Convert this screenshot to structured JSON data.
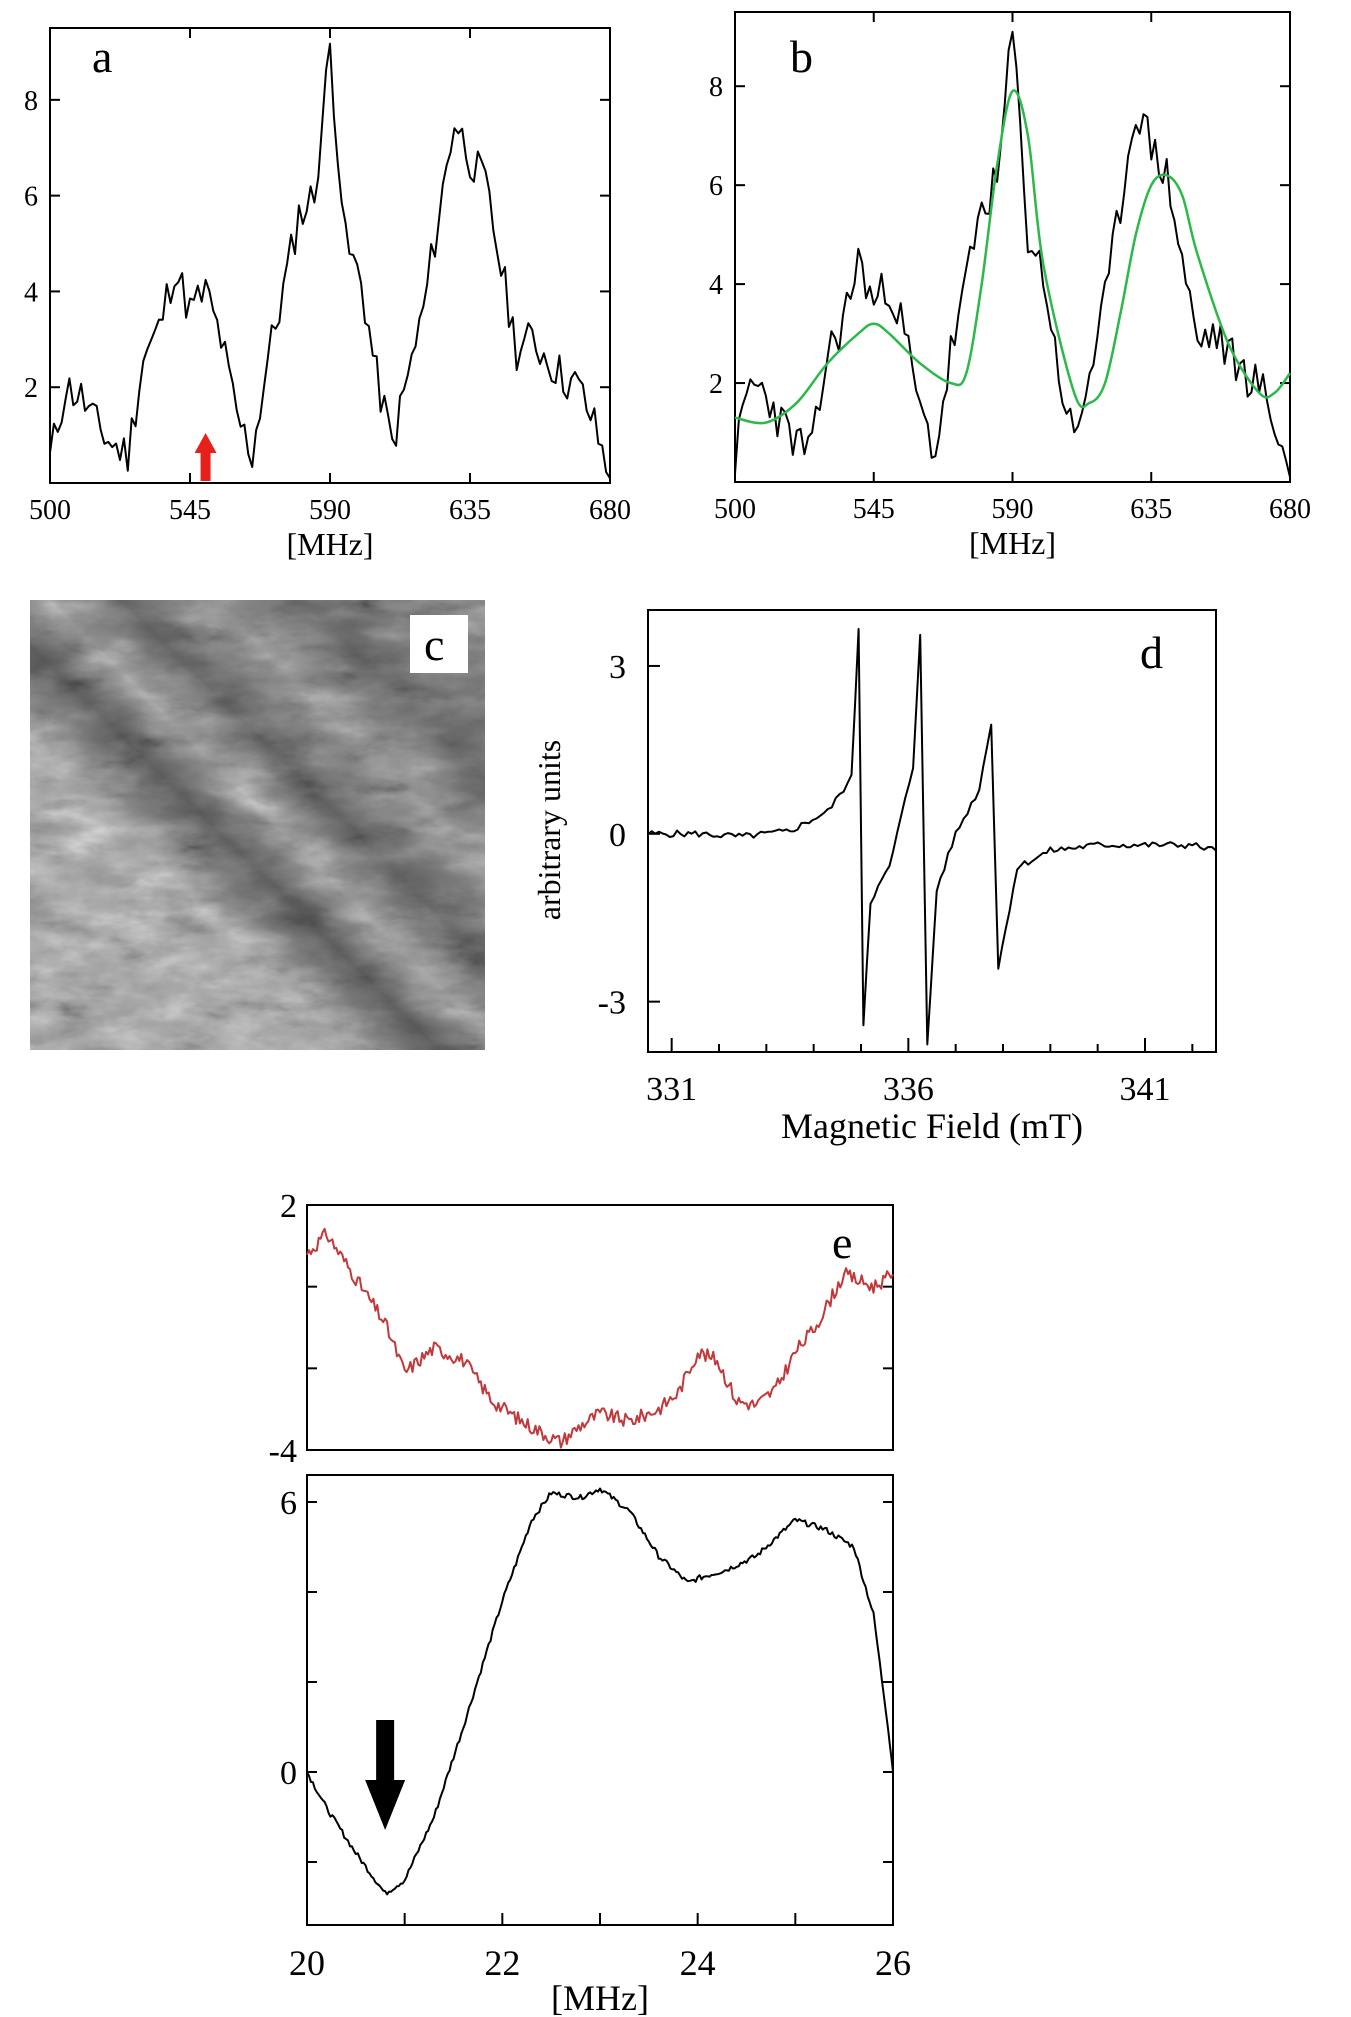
{
  "chart_data": [
    {
      "panel": "a",
      "type": "line",
      "xlabel": "[MHz]",
      "xlim": [
        500,
        680
      ],
      "ylim": [
        0,
        9.5
      ],
      "xticks": [
        "500",
        "545",
        "590",
        "635",
        "680"
      ],
      "yticks": [
        "2",
        "4",
        "6",
        "8"
      ],
      "series": [
        {
          "color": "#000000",
          "x": [
            500,
            505,
            510,
            515,
            520,
            525,
            530,
            535,
            540,
            545,
            550,
            555,
            560,
            565,
            570,
            575,
            580,
            585,
            590,
            595,
            600,
            605,
            610,
            615,
            620,
            625,
            630,
            635,
            640,
            645,
            650,
            655,
            660,
            665,
            670,
            675,
            680
          ],
          "y": [
            0.5,
            2.0,
            1.8,
            1.2,
            0.8,
            0.6,
            2.6,
            3.2,
            4.5,
            3.6,
            4.0,
            3.0,
            1.4,
            0.6,
            2.6,
            4.0,
            5.6,
            6.0,
            9.1,
            5.0,
            4.2,
            2.2,
            0.8,
            2.2,
            3.6,
            5.6,
            7.6,
            6.8,
            6.2,
            4.5,
            2.8,
            3.0,
            2.6,
            2.2,
            2.0,
            1.2,
            0.1
          ]
        }
      ],
      "annotations": [
        {
          "type": "arrow",
          "x": 550,
          "direction": "up",
          "color": "#e8201c"
        }
      ]
    },
    {
      "panel": "b",
      "type": "line",
      "xlabel": "[MHz]",
      "xlim": [
        500,
        680
      ],
      "ylim": [
        0,
        9.5
      ],
      "xticks": [
        "500",
        "545",
        "590",
        "635",
        "680"
      ],
      "yticks": [
        "2",
        "4",
        "6",
        "8"
      ],
      "series": [
        {
          "color": "#000000",
          "x": [
            500,
            505,
            510,
            515,
            520,
            525,
            530,
            535,
            540,
            545,
            550,
            555,
            560,
            565,
            570,
            575,
            580,
            585,
            590,
            595,
            600,
            605,
            610,
            615,
            620,
            625,
            630,
            635,
            640,
            645,
            650,
            655,
            660,
            665,
            670,
            675,
            680
          ],
          "y": [
            0.5,
            2.0,
            1.8,
            1.2,
            0.8,
            0.6,
            2.6,
            3.2,
            4.5,
            3.6,
            4.0,
            3.0,
            1.4,
            0.6,
            2.6,
            4.0,
            5.6,
            6.0,
            9.1,
            5.0,
            4.2,
            2.2,
            0.8,
            2.2,
            3.6,
            5.6,
            7.6,
            6.8,
            6.2,
            4.5,
            2.8,
            3.0,
            2.6,
            2.2,
            2.0,
            1.2,
            0.1
          ]
        },
        {
          "color": "#2db84a",
          "x": [
            500,
            510,
            520,
            530,
            540,
            545,
            550,
            560,
            570,
            575,
            580,
            585,
            590,
            595,
            600,
            610,
            615,
            620,
            625,
            630,
            635,
            640,
            645,
            650,
            660,
            670,
            675,
            680
          ],
          "y": [
            1.3,
            1.2,
            1.6,
            2.4,
            3.0,
            3.2,
            3.0,
            2.4,
            2.0,
            2.2,
            4.0,
            6.4,
            7.9,
            7.0,
            4.4,
            1.8,
            1.6,
            2.0,
            3.4,
            5.0,
            6.0,
            6.2,
            5.8,
            4.6,
            2.8,
            1.8,
            1.8,
            2.2
          ]
        }
      ]
    },
    {
      "panel": "c",
      "type": "heatmap",
      "description_visible": "grayscale surface image"
    },
    {
      "panel": "d",
      "type": "line",
      "xlabel": "Magnetic Field (mT)",
      "ylabel": "arbitrary  units",
      "xlim": [
        330.5,
        342.5
      ],
      "ylim": [
        -3.9,
        4.0
      ],
      "xticks": [
        "331",
        "336",
        "341"
      ],
      "yticks": [
        "3",
        "0",
        "-3"
      ],
      "series": [
        {
          "color": "#000000",
          "x": [
            330.5,
            331.5,
            332.5,
            333.5,
            334.3,
            334.8,
            334.95,
            335.05,
            335.2,
            335.6,
            336.1,
            336.25,
            336.4,
            336.6,
            337.0,
            337.5,
            337.75,
            337.9,
            338.3,
            339.0,
            340.0,
            341.0,
            342.0,
            342.5
          ],
          "y": [
            0.0,
            0.0,
            -0.05,
            0.05,
            0.4,
            1.0,
            3.7,
            -3.4,
            -1.2,
            -0.6,
            1.2,
            3.6,
            -3.8,
            -1.0,
            0.0,
            0.8,
            2.0,
            -2.4,
            -0.6,
            -0.3,
            -0.2,
            -0.2,
            -0.2,
            -0.3
          ]
        }
      ]
    },
    {
      "panel": "e",
      "type": "line",
      "xlabel": "[MHz]",
      "xlim": [
        20,
        26
      ],
      "xticks": [
        "20",
        "22",
        "24",
        "26"
      ],
      "subplots": [
        {
          "ylim": [
            -4,
            2
          ],
          "yticks": [
            "2",
            "-4"
          ],
          "tick_color": "#c0393b",
          "series": [
            {
              "color": "#c0393b",
              "x": [
                20.0,
                20.2,
                20.5,
                20.8,
                21.0,
                21.3,
                21.6,
                21.9,
                22.2,
                22.5,
                22.6,
                22.8,
                23.0,
                23.3,
                23.6,
                23.8,
                24.0,
                24.2,
                24.4,
                24.6,
                24.8,
                25.0,
                25.2,
                25.5,
                25.8,
                26.0
              ],
              "y": [
                0.8,
                1.3,
                0.2,
                -0.9,
                -2.1,
                -1.5,
                -1.8,
                -2.8,
                -3.3,
                -3.7,
                -3.8,
                -3.4,
                -3.1,
                -3.3,
                -3.0,
                -2.6,
                -1.6,
                -1.8,
                -2.8,
                -2.9,
                -2.5,
                -1.6,
                -1.0,
                0.3,
                0.0,
                0.3
              ]
            }
          ]
        },
        {
          "ylim": [
            -3.4,
            6.6
          ],
          "yticks": [
            "6",
            "0"
          ],
          "tick_color": "#000000",
          "series": [
            {
              "color": "#000000",
              "x": [
                20.0,
                20.2,
                20.5,
                20.8,
                21.0,
                21.3,
                21.6,
                22.0,
                22.3,
                22.5,
                22.8,
                23.0,
                23.3,
                23.6,
                23.9,
                24.0,
                24.3,
                24.6,
                25.0,
                25.3,
                25.6,
                25.8,
                25.95,
                26.0
              ],
              "y": [
                0.0,
                -0.8,
                -1.8,
                -2.7,
                -2.4,
                -1.0,
                1.0,
                3.8,
                5.6,
                6.2,
                6.1,
                6.3,
                5.8,
                4.8,
                4.2,
                4.3,
                4.5,
                4.8,
                5.6,
                5.4,
                5.0,
                3.5,
                1.0,
                0.0
              ]
            }
          ]
        }
      ],
      "annotations": [
        {
          "type": "arrow",
          "x": 20.8,
          "direction": "down",
          "color": "#000000"
        }
      ]
    }
  ],
  "labels": {
    "panel_a": "a",
    "panel_b": "b",
    "panel_c": "c",
    "panel_d": "d",
    "panel_e": "e"
  }
}
